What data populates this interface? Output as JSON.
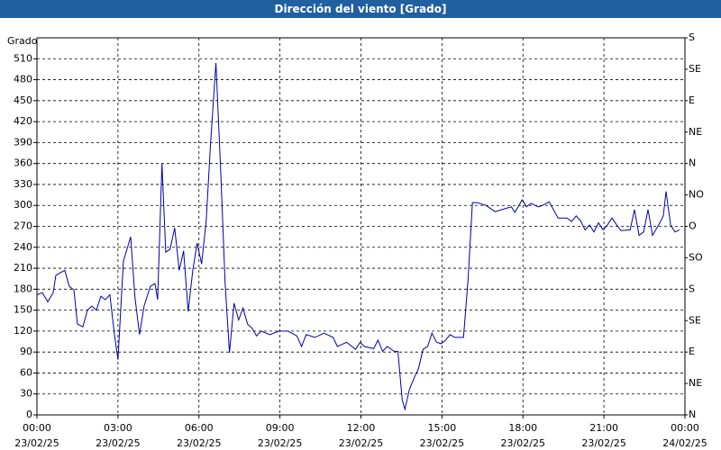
{
  "chart_data": {
    "type": "line",
    "title": "Dirección del viento [Grado]",
    "y_label": "Grado",
    "color": "#0000a8",
    "grid": true,
    "xlim": [
      0,
      24
    ],
    "xticks": [
      {
        "value": 0,
        "label": "00:00\n23/02/25"
      },
      {
        "value": 3,
        "label": "03:00\n23/02/25"
      },
      {
        "value": 6,
        "label": "06:00\n23/02/25"
      },
      {
        "value": 9,
        "label": "09:00\n23/02/25"
      },
      {
        "value": 12,
        "label": "12:00\n23/02/25"
      },
      {
        "value": 15,
        "label": "15:00\n23/02/25"
      },
      {
        "value": 18,
        "label": "18:00\n23/02/25"
      },
      {
        "value": 21,
        "label": "21:00\n23/02/25"
      },
      {
        "value": 24,
        "label": "00:00\n24/02/25"
      }
    ],
    "ylim": [
      0,
      540
    ],
    "yticks": [
      0,
      30,
      60,
      90,
      120,
      150,
      180,
      210,
      240,
      270,
      300,
      330,
      360,
      390,
      420,
      450,
      480,
      510
    ],
    "y2lim": [
      0,
      540
    ],
    "y2ticks": [
      {
        "value": 0,
        "label": "N"
      },
      {
        "value": 45,
        "label": "NE"
      },
      {
        "value": 90,
        "label": "E"
      },
      {
        "value": 135,
        "label": "SE"
      },
      {
        "value": 180,
        "label": "S"
      },
      {
        "value": 225,
        "label": "SO"
      },
      {
        "value": 270,
        "label": "O"
      },
      {
        "value": 315,
        "label": "NO"
      },
      {
        "value": 360,
        "label": "N"
      },
      {
        "value": 405,
        "label": "NE"
      },
      {
        "value": 450,
        "label": "E"
      },
      {
        "value": 495,
        "label": "SE"
      },
      {
        "value": 540,
        "label": "S"
      }
    ],
    "x": [
      0,
      0.2,
      0.4,
      0.6,
      0.7,
      0.93,
      1.03,
      1.2,
      1.37,
      1.5,
      1.7,
      1.87,
      2.03,
      2.2,
      2.37,
      2.53,
      2.7,
      2.87,
      3.0,
      3.2,
      3.47,
      3.63,
      3.8,
      3.97,
      4.2,
      4.37,
      4.47,
      4.63,
      4.77,
      4.93,
      5.1,
      5.27,
      5.43,
      5.6,
      5.77,
      5.93,
      6.1,
      6.27,
      6.43,
      6.63,
      6.8,
      6.97,
      7.13,
      7.3,
      7.47,
      7.63,
      7.8,
      7.97,
      8.13,
      8.3,
      8.63,
      8.97,
      9.3,
      9.63,
      9.8,
      9.97,
      10.3,
      10.63,
      10.97,
      11.13,
      11.47,
      11.8,
      11.97,
      12.13,
      12.47,
      12.63,
      12.8,
      12.97,
      13.23,
      13.37,
      13.53,
      13.63,
      13.8,
      13.97,
      14.13,
      14.3,
      14.47,
      14.63,
      14.8,
      14.97,
      15.13,
      15.3,
      15.47,
      15.63,
      15.8,
      15.97,
      16.13,
      16.3,
      16.63,
      16.97,
      17.3,
      17.57,
      17.7,
      17.97,
      18.13,
      18.3,
      18.57,
      18.73,
      18.97,
      19.3,
      19.63,
      19.8,
      19.97,
      20.13,
      20.3,
      20.47,
      20.63,
      20.8,
      20.97,
      21.13,
      21.3,
      21.47,
      21.63,
      21.97,
      22.13,
      22.3,
      22.47,
      22.63,
      22.8,
      23.07,
      23.2,
      23.3,
      23.47,
      23.63,
      23.8
    ],
    "values": [
      172,
      175,
      162,
      175,
      200,
      205,
      207,
      184,
      179,
      130,
      126,
      150,
      156,
      150,
      170,
      165,
      172,
      115,
      79,
      220,
      255,
      169,
      115,
      156,
      184,
      188,
      165,
      360,
      233,
      237,
      268,
      207,
      235,
      148,
      207,
      246,
      216,
      278,
      388,
      504,
      355,
      188,
      89,
      160,
      136,
      153,
      130,
      124,
      113,
      120,
      115,
      120,
      120,
      113,
      98,
      115,
      111,
      117,
      111,
      98,
      104,
      94,
      104,
      98,
      95,
      107,
      91,
      98,
      91,
      91,
      21,
      8,
      37,
      53,
      66,
      94,
      98,
      117,
      104,
      102,
      107,
      115,
      111,
      111,
      111,
      195,
      304,
      304,
      300,
      291,
      295,
      298,
      290,
      308,
      298,
      303,
      298,
      300,
      305,
      282,
      282,
      277,
      285,
      278,
      265,
      272,
      262,
      275,
      265,
      272,
      282,
      272,
      264,
      265,
      294,
      257,
      262,
      294,
      257,
      275,
      285,
      320,
      272,
      262,
      265
    ]
  }
}
